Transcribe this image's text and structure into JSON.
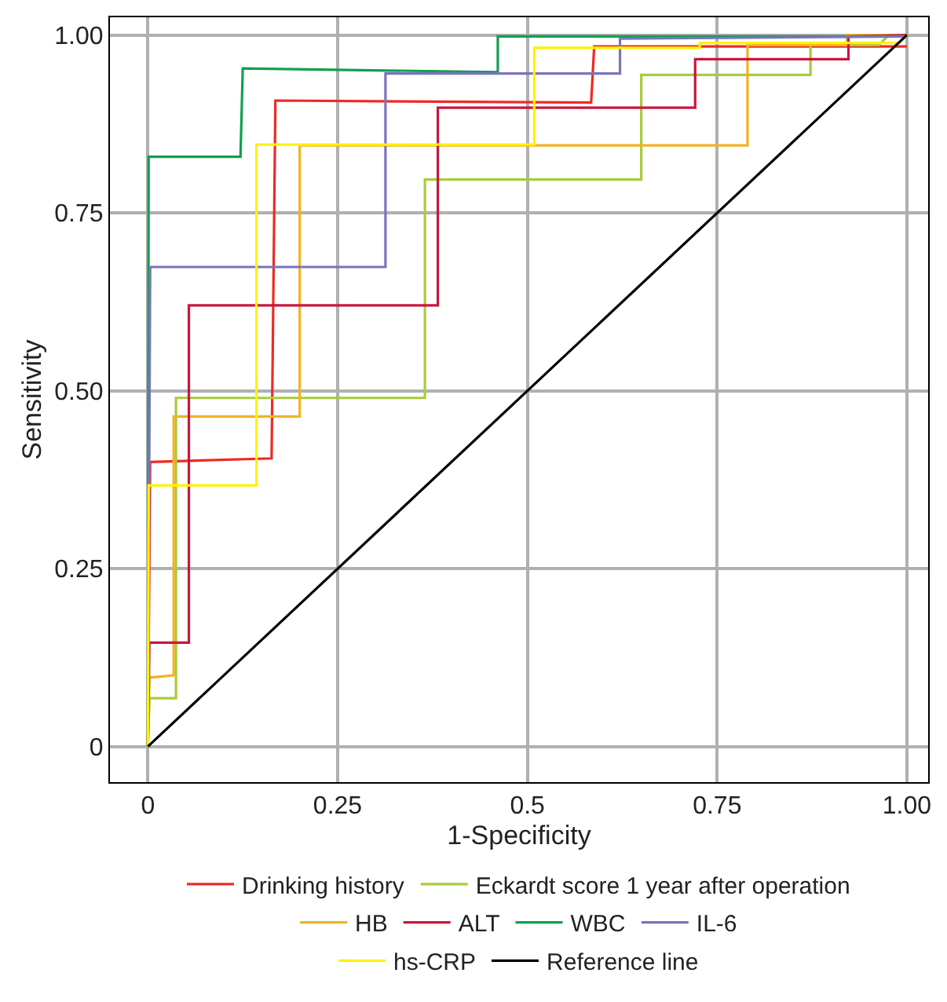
{
  "chart_data": {
    "type": "line",
    "xlabel": "1-Specificity",
    "ylabel": "Sensitivity",
    "xlim": [
      -0.05,
      1.028
    ],
    "ylim": [
      -0.05,
      1.025
    ],
    "xticks": [
      0,
      0.25,
      0.5,
      0.75,
      {
        "value": 1,
        "label": "1.00"
      }
    ],
    "yticks": [
      0,
      {
        "value": 0.25,
        "label": "0.25"
      },
      {
        "value": 0.5,
        "label": "0.50"
      },
      {
        "value": 0.75,
        "label": "0.75"
      },
      {
        "value": 1,
        "label": "1.00"
      }
    ],
    "grid": true,
    "legend": "bottom",
    "marker": "none",
    "line_style": "solid",
    "series": [
      {
        "name": "Drinking history",
        "color": "#ee2a24",
        "x": [
          0,
          0.003,
          0.163,
          0.168,
          0.584,
          0.588,
          1
        ],
        "values": [
          0,
          0.4,
          0.405,
          0.908,
          0.905,
          0.984,
          0.984
        ]
      },
      {
        "name": "Eckardt score 1 year after operation",
        "color": "#a8cc3c",
        "x": [
          0,
          0.002,
          0.037,
          0.037,
          0.365,
          0.365,
          0.65,
          0.65,
          0.873,
          0.873,
          0.963,
          0.975,
          1
        ],
        "values": [
          0,
          0.068,
          0.068,
          0.49,
          0.49,
          0.797,
          0.797,
          0.944,
          0.944,
          0.986,
          0.986,
          0.999,
          1
        ]
      },
      {
        "name": "HB",
        "color": "#f0b323",
        "x": [
          0,
          0.002,
          0.034,
          0.034,
          0.2,
          0.2,
          0.79,
          0.79,
          0.921,
          0.921,
          1
        ],
        "values": [
          0,
          0.097,
          0.1,
          0.464,
          0.464,
          0.845,
          0.845,
          0.986,
          0.986,
          1,
          1
        ]
      },
      {
        "name": "ALT",
        "color": "#c8173f",
        "x": [
          0,
          0.002,
          0.054,
          0.054,
          0.382,
          0.382,
          0.721,
          0.721,
          0.923,
          0.923,
          1
        ],
        "values": [
          0,
          0.146,
          0.146,
          0.62,
          0.62,
          0.898,
          0.898,
          0.966,
          0.966,
          0.998,
          1
        ]
      },
      {
        "name": "WBC",
        "color": "#10a050",
        "x": [
          0,
          0.001,
          0.122,
          0.125,
          0.461,
          0.461,
          1
        ],
        "values": [
          0,
          0.829,
          0.829,
          0.953,
          0.948,
          0.998,
          0.998
        ]
      },
      {
        "name": "IL-6",
        "color": "#7b74bb",
        "x": [
          0,
          0.003,
          0.313,
          0.313,
          0.622,
          0.622,
          1
        ],
        "values": [
          0,
          0.674,
          0.674,
          0.946,
          0.946,
          0.995,
          0.998
        ]
      },
      {
        "name": "hs-CRP",
        "color": "#fff200",
        "x": [
          0,
          0.001,
          0.143,
          0.143,
          0.509,
          0.509,
          0.727,
          0.727,
          0.99,
          1
        ],
        "values": [
          0,
          0.367,
          0.367,
          0.846,
          0.846,
          0.982,
          0.982,
          0.989,
          0.989,
          1
        ]
      },
      {
        "name": "Reference line",
        "color": "#000000",
        "x": [
          0,
          1
        ],
        "values": [
          0,
          1
        ]
      }
    ]
  }
}
